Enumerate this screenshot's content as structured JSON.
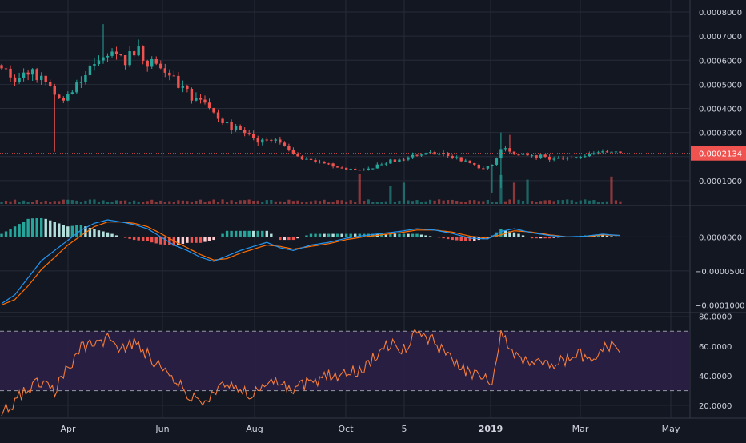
{
  "theme": {
    "background": "#131722",
    "grid": "#262b38",
    "axis_text": "#d1d4dc",
    "up": "#26a69a",
    "down": "#ef5350",
    "price_line": "#ef5350",
    "macd_line": "#2196f3",
    "signal_line": "#ff6d00",
    "hist_up": "#26a69a",
    "hist_up_light": "#b2dfdb",
    "hist_down": "#ef5350",
    "hist_down_light": "#ffcdd2",
    "rsi_line": "#f57c3c",
    "rsi_band": "#2a1f45",
    "rsi_band_line": "#9598a1"
  },
  "x_axis": {
    "labels": [
      "Apr",
      "Jun",
      "Aug",
      "Oct",
      "5",
      "2019",
      "Mar",
      "May"
    ],
    "bold": [
      false,
      false,
      false,
      false,
      false,
      true,
      false,
      false
    ]
  },
  "chart_data": [
    {
      "type": "candlestick",
      "panel": "price",
      "ylim": [
        0,
        0.00085
      ],
      "y_ticks": [
        "0.0001000",
        "0.0002000",
        "0.0003000",
        "0.0004000",
        "0.0005000",
        "0.0006000",
        "0.0007000",
        "0.0008000"
      ],
      "last_price": "0.0002134",
      "last_value": 0.0002134,
      "close_path": [
        [
          0,
          0.00058
        ],
        [
          3,
          0.00052
        ],
        [
          6,
          0.00056
        ],
        [
          10,
          0.0005
        ],
        [
          14,
          0.00044
        ],
        [
          16,
          0.00047
        ],
        [
          19,
          0.00055
        ],
        [
          22,
          0.0006
        ],
        [
          26,
          0.00064
        ],
        [
          28,
          0.0006
        ],
        [
          31,
          0.00063
        ],
        [
          34,
          0.00058
        ],
        [
          37,
          0.00055
        ],
        [
          40,
          0.0005
        ],
        [
          43,
          0.00045
        ],
        [
          46,
          0.00041
        ],
        [
          49,
          0.00035
        ],
        [
          52,
          0.00032
        ],
        [
          55,
          0.00031
        ],
        [
          58,
          0.00027
        ],
        [
          61,
          0.00027
        ],
        [
          64,
          0.00024
        ],
        [
          67,
          0.0002
        ],
        [
          70,
          0.00018
        ],
        [
          73,
          0.00017
        ],
        [
          76,
          0.00016
        ],
        [
          79,
          0.00015
        ],
        [
          82,
          0.00014
        ],
        [
          85,
          0.00016
        ],
        [
          88,
          0.00018
        ],
        [
          91,
          0.00019
        ],
        [
          94,
          0.00021
        ],
        [
          97,
          0.00022
        ],
        [
          100,
          0.00021
        ],
        [
          103,
          0.00019
        ],
        [
          106,
          0.00017
        ],
        [
          109,
          0.00015
        ],
        [
          111,
          0.00016
        ],
        [
          113,
          0.00024
        ],
        [
          116,
          0.00021
        ],
        [
          119,
          0.00021
        ],
        [
          122,
          0.0002
        ],
        [
          125,
          0.00019
        ],
        [
          128,
          0.0002
        ],
        [
          131,
          0.0002
        ],
        [
          134,
          0.00021
        ],
        [
          137,
          0.00022
        ],
        [
          140,
          0.00021
        ]
      ],
      "special_wicks": [
        {
          "bar": 12,
          "low": 0.00022
        },
        {
          "bar": 23,
          "high": 0.00075
        },
        {
          "bar": 111,
          "low": 5e-05
        },
        {
          "bar": 113,
          "high": 0.0003,
          "low": 7e-05
        },
        {
          "bar": 115,
          "high": 0.00029
        }
      ]
    },
    {
      "type": "histogram",
      "panel": "volume",
      "description_values": "relative volume 0-1",
      "spikes": [
        {
          "bar": 81,
          "value": 1.0
        },
        {
          "bar": 88,
          "value": 0.6
        },
        {
          "bar": 91,
          "value": 0.7
        },
        {
          "bar": 113,
          "value": 0.95
        },
        {
          "bar": 116,
          "value": 0.7
        },
        {
          "bar": 119,
          "value": 0.8
        },
        {
          "bar": 138,
          "value": 0.9
        }
      ]
    },
    {
      "type": "line",
      "panel": "macd",
      "ylim": [
        -0.00011,
        4.5e-05
      ],
      "y_ticks": [
        "0.0000000",
        "−0.0000500",
        "−0.0001000"
      ],
      "macd_path": [
        [
          0,
          -9.8e-05
        ],
        [
          3,
          -8.5e-05
        ],
        [
          6,
          -6e-05
        ],
        [
          9,
          -3.5e-05
        ],
        [
          12,
          -2e-05
        ],
        [
          15,
          -5e-06
        ],
        [
          18,
          1e-05
        ],
        [
          21,
          2e-05
        ],
        [
          24,
          2.5e-05
        ],
        [
          27,
          2.2e-05
        ],
        [
          30,
          1.8e-05
        ],
        [
          33,
          1.2e-05
        ],
        [
          36,
          0.0
        ],
        [
          39,
          -1.2e-05
        ],
        [
          42,
          -2e-05
        ],
        [
          45,
          -3e-05
        ],
        [
          48,
          -3.6e-05
        ],
        [
          51,
          -2.8e-05
        ],
        [
          54,
          -2e-05
        ],
        [
          57,
          -1.4e-05
        ],
        [
          60,
          -8e-06
        ],
        [
          63,
          -1.6e-05
        ],
        [
          66,
          -2e-05
        ],
        [
          70,
          -1.2e-05
        ],
        [
          74,
          -8e-06
        ],
        [
          78,
          -2e-06
        ],
        [
          82,
          2e-06
        ],
        [
          86,
          5e-06
        ],
        [
          90,
          8e-06
        ],
        [
          94,
          1.2e-05
        ],
        [
          98,
          1e-05
        ],
        [
          102,
          5e-06
        ],
        [
          106,
          -2e-06
        ],
        [
          110,
          -3e-06
        ],
        [
          113,
          8e-06
        ],
        [
          116,
          1.2e-05
        ],
        [
          120,
          6e-06
        ],
        [
          124,
          2e-06
        ],
        [
          128,
          0.0
        ],
        [
          132,
          1e-06
        ],
        [
          136,
          4e-06
        ],
        [
          140,
          2e-06
        ]
      ],
      "signal_path": [
        [
          0,
          -0.0001
        ],
        [
          3,
          -9.2e-05
        ],
        [
          6,
          -7.2e-05
        ],
        [
          9,
          -4.8e-05
        ],
        [
          12,
          -3e-05
        ],
        [
          15,
          -1.2e-05
        ],
        [
          18,
          2e-06
        ],
        [
          21,
          1.5e-05
        ],
        [
          24,
          2.2e-05
        ],
        [
          27,
          2.2e-05
        ],
        [
          30,
          2e-05
        ],
        [
          33,
          1.5e-05
        ],
        [
          36,
          5e-06
        ],
        [
          39,
          -6e-06
        ],
        [
          42,
          -1.6e-05
        ],
        [
          45,
          -2.6e-05
        ],
        [
          48,
          -3.4e-05
        ],
        [
          51,
          -3.2e-05
        ],
        [
          54,
          -2.4e-05
        ],
        [
          57,
          -1.8e-05
        ],
        [
          60,
          -1.2e-05
        ],
        [
          63,
          -1.4e-05
        ],
        [
          66,
          -1.8e-05
        ],
        [
          70,
          -1.4e-05
        ],
        [
          74,
          -1e-05
        ],
        [
          78,
          -4e-06
        ],
        [
          82,
          0.0
        ],
        [
          86,
          3e-06
        ],
        [
          90,
          6e-06
        ],
        [
          94,
          1e-05
        ],
        [
          98,
          1e-05
        ],
        [
          102,
          7e-06
        ],
        [
          106,
          1e-06
        ],
        [
          110,
          -2e-06
        ],
        [
          113,
          3e-06
        ],
        [
          116,
          9e-06
        ],
        [
          120,
          7e-06
        ],
        [
          124,
          3e-06
        ],
        [
          128,
          0.0
        ],
        [
          132,
          0.0
        ],
        [
          136,
          3e-06
        ],
        [
          140,
          2e-06
        ]
      ]
    },
    {
      "type": "line",
      "panel": "rsi",
      "ylim": [
        12,
        82
      ],
      "y_ticks": [
        "80.0000",
        "60.0000",
        "40.0000",
        "20.0000"
      ],
      "upper_band": 70,
      "lower_band": 30,
      "rsi_path": [
        [
          0,
          15
        ],
        [
          3,
          22
        ],
        [
          6,
          32
        ],
        [
          9,
          35
        ],
        [
          12,
          30
        ],
        [
          15,
          45
        ],
        [
          18,
          60
        ],
        [
          21,
          62
        ],
        [
          24,
          65
        ],
        [
          27,
          58
        ],
        [
          30,
          62
        ],
        [
          33,
          55
        ],
        [
          36,
          45
        ],
        [
          39,
          38
        ],
        [
          42,
          28
        ],
        [
          45,
          22
        ],
        [
          48,
          26
        ],
        [
          51,
          35
        ],
        [
          54,
          30
        ],
        [
          57,
          28
        ],
        [
          60,
          38
        ],
        [
          63,
          35
        ],
        [
          66,
          30
        ],
        [
          70,
          36
        ],
        [
          74,
          40
        ],
        [
          78,
          42
        ],
        [
          82,
          45
        ],
        [
          85,
          55
        ],
        [
          88,
          62
        ],
        [
          91,
          58
        ],
        [
          94,
          70
        ],
        [
          97,
          65
        ],
        [
          100,
          55
        ],
        [
          103,
          48
        ],
        [
          106,
          42
        ],
        [
          109,
          40
        ],
        [
          111,
          30
        ],
        [
          113,
          72
        ],
        [
          116,
          55
        ],
        [
          119,
          50
        ],
        [
          122,
          52
        ],
        [
          125,
          48
        ],
        [
          128,
          50
        ],
        [
          131,
          55
        ],
        [
          134,
          48
        ],
        [
          137,
          62
        ],
        [
          140,
          55
        ]
      ]
    }
  ]
}
